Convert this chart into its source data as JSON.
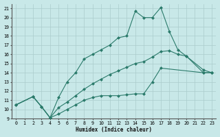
{
  "xlabel": "Humidex (Indice chaleur)",
  "bg_color": "#c8e8e8",
  "grid_color": "#aacccc",
  "line_color": "#2a7a6a",
  "xlim": [
    -0.5,
    23.5
  ],
  "ylim": [
    9,
    21.5
  ],
  "line1_x": [
    0,
    2,
    3,
    4,
    5,
    6,
    7,
    8,
    9,
    10,
    11,
    12,
    13,
    14,
    15,
    16,
    17,
    18,
    19,
    20,
    22,
    23
  ],
  "line1_y": [
    10.5,
    11.4,
    10.3,
    9.1,
    11.3,
    13.0,
    14.0,
    15.5,
    16.0,
    16.5,
    17.0,
    17.8,
    18.0,
    20.7,
    20.0,
    20.0,
    21.1,
    18.5,
    16.5,
    15.8,
    14.0,
    14.0
  ],
  "line2_x": [
    0,
    2,
    3,
    4,
    5,
    6,
    7,
    8,
    9,
    10,
    11,
    12,
    13,
    14,
    15,
    16,
    17,
    18,
    19,
    20,
    22,
    23
  ],
  "line2_y": [
    10.5,
    11.4,
    10.3,
    9.1,
    10.2,
    10.8,
    11.5,
    12.2,
    12.8,
    13.3,
    13.8,
    14.2,
    14.6,
    15.0,
    15.2,
    15.7,
    16.3,
    16.4,
    16.0,
    15.8,
    14.3,
    14.0
  ],
  "line3_x": [
    0,
    2,
    3,
    4,
    5,
    6,
    7,
    8,
    9,
    10,
    11,
    12,
    13,
    14,
    15,
    16,
    17,
    22,
    23
  ],
  "line3_y": [
    10.5,
    11.4,
    10.3,
    9.1,
    9.5,
    10.0,
    10.5,
    11.0,
    11.3,
    11.5,
    11.5,
    11.5,
    11.6,
    11.7,
    11.7,
    13.0,
    14.5,
    14.0,
    14.0
  ],
  "xticks": [
    0,
    1,
    2,
    3,
    4,
    5,
    6,
    7,
    8,
    9,
    10,
    11,
    12,
    13,
    14,
    15,
    16,
    17,
    18,
    19,
    20,
    21,
    22,
    23
  ],
  "yticks": [
    9,
    10,
    11,
    12,
    13,
    14,
    15,
    16,
    17,
    18,
    19,
    20,
    21
  ]
}
